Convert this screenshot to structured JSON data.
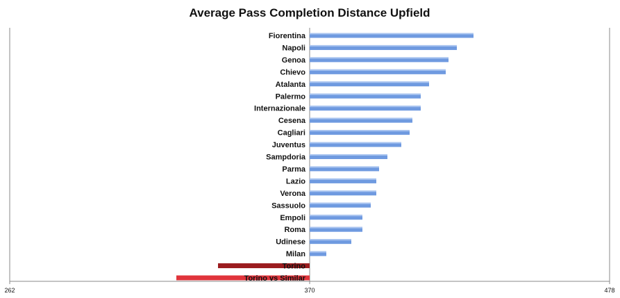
{
  "chart_data": {
    "type": "bar",
    "orientation": "horizontal",
    "title": "Average Pass Completion Distance Upfield",
    "xlabel": "",
    "ylabel": "",
    "xlim": [
      262,
      478
    ],
    "baseline": 370,
    "x_ticks": [
      "262",
      "370",
      "478"
    ],
    "grid": false,
    "colors": {
      "default_bar": "#6f9ae0",
      "highlight_dark": "#9b1c1f",
      "highlight_light": "#e0343b"
    },
    "bars": [
      {
        "category": "Fiorentina",
        "value": 429,
        "color": "default_bar"
      },
      {
        "category": "Napoli",
        "value": 423,
        "color": "default_bar"
      },
      {
        "category": "Genoa",
        "value": 420,
        "color": "default_bar"
      },
      {
        "category": "Chievo",
        "value": 419,
        "color": "default_bar"
      },
      {
        "category": "Atalanta",
        "value": 413,
        "color": "default_bar"
      },
      {
        "category": "Palermo",
        "value": 410,
        "color": "default_bar"
      },
      {
        "category": "Internazionale",
        "value": 410,
        "color": "default_bar"
      },
      {
        "category": "Cesena",
        "value": 407,
        "color": "default_bar"
      },
      {
        "category": "Cagliari",
        "value": 406,
        "color": "default_bar"
      },
      {
        "category": "Juventus",
        "value": 403,
        "color": "default_bar"
      },
      {
        "category": "Sampdoria",
        "value": 398,
        "color": "default_bar"
      },
      {
        "category": "Parma",
        "value": 395,
        "color": "default_bar"
      },
      {
        "category": "Lazio",
        "value": 394,
        "color": "default_bar"
      },
      {
        "category": "Verona",
        "value": 394,
        "color": "default_bar"
      },
      {
        "category": "Sassuolo",
        "value": 392,
        "color": "default_bar"
      },
      {
        "category": "Empoli",
        "value": 389,
        "color": "default_bar"
      },
      {
        "category": "Roma",
        "value": 389,
        "color": "default_bar"
      },
      {
        "category": "Udinese",
        "value": 385,
        "color": "default_bar"
      },
      {
        "category": "Milan",
        "value": 376,
        "color": "default_bar"
      },
      {
        "category": "Torino",
        "value": 337,
        "color": "highlight_dark"
      },
      {
        "category": "Torino vs Similar",
        "value": 322,
        "color": "highlight_light"
      }
    ]
  }
}
